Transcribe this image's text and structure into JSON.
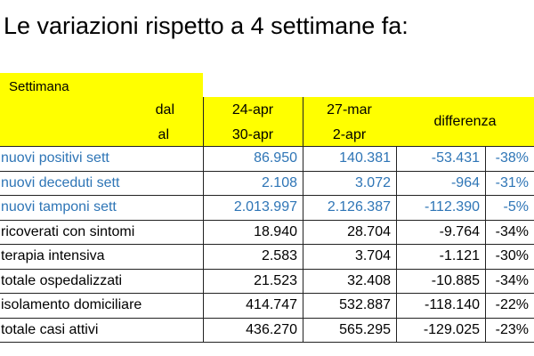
{
  "title": "Le variazioni rispetto a 4 settimane fa:",
  "table": {
    "header": {
      "settimana": "Settimana",
      "dal": "dal",
      "al": "al",
      "periods": [
        {
          "from": "24-apr",
          "to": "30-apr"
        },
        {
          "from": "27-mar",
          "to": "2-apr"
        }
      ],
      "differenza": "differenza"
    },
    "rows": [
      [
        "nuovi positivi sett",
        "86.950",
        "140.381",
        "-53.431",
        "-38%"
      ],
      [
        "nuovi deceduti sett",
        "2.108",
        "3.072",
        "-964",
        "-31%"
      ],
      [
        "nuovi tamponi sett",
        "2.013.997",
        "2.126.387",
        "-112.390",
        "-5%"
      ],
      [
        "ricoverati con sintomi",
        "18.940",
        "28.704",
        "-9.764",
        "-34%"
      ],
      [
        "terapia intensiva",
        "2.583",
        "3.704",
        "-1.121",
        "-30%"
      ],
      [
        "totale ospedalizzati",
        "21.523",
        "32.408",
        "-10.885",
        "-34%"
      ],
      [
        "isolamento domiciliare",
        "414.747",
        "532.887",
        "-118.140",
        "-22%"
      ],
      [
        "totale casi attivi",
        "436.270",
        "565.295",
        "-129.025",
        "-23%"
      ]
    ]
  }
}
